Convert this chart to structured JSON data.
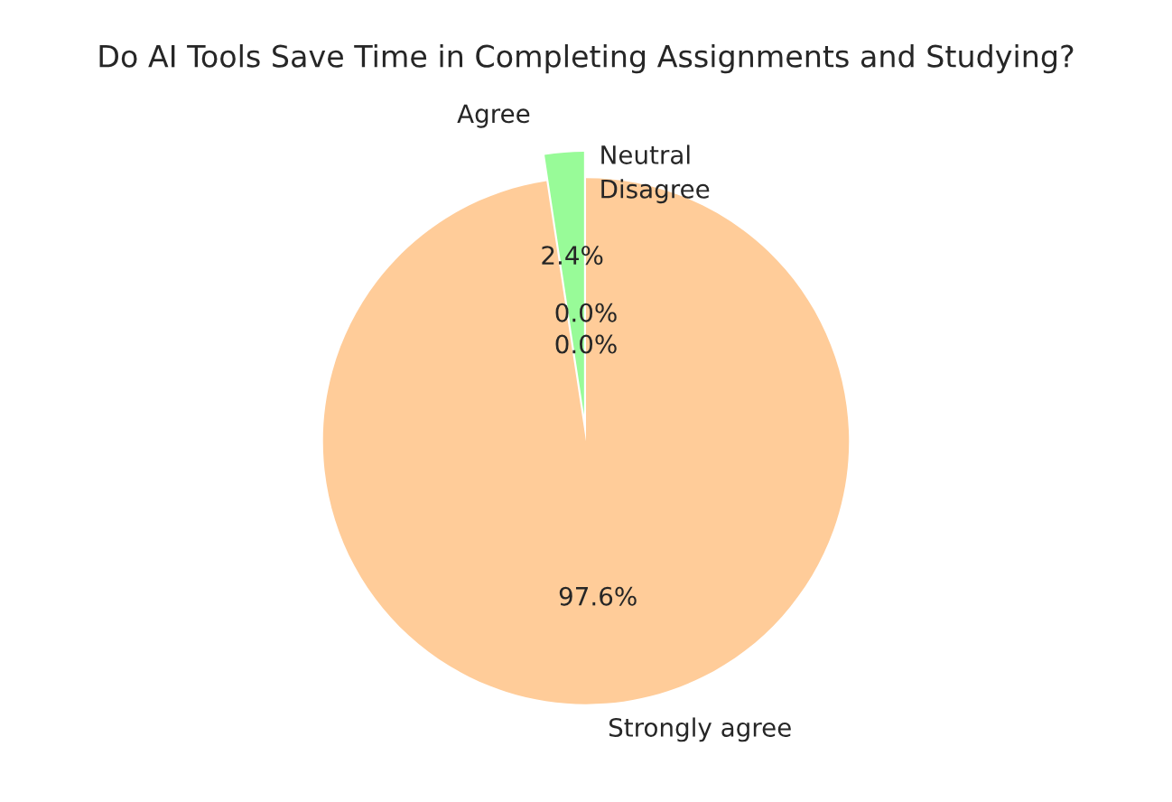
{
  "chart_data": {
    "type": "pie",
    "title": "Do AI Tools Save Time in Completing Assignments and Studying?",
    "categories": [
      "Agree",
      "Strongly agree",
      "Neutral",
      "Disagree"
    ],
    "values": [
      2.4,
      97.6,
      0.0,
      0.0
    ],
    "colors": [
      "#98fb98",
      "#ffcc99",
      "#66b3ff",
      "#ff9999"
    ],
    "value_labels": [
      "2.4%",
      "97.6%",
      "0.0%",
      "0.0%"
    ],
    "legend": false
  }
}
